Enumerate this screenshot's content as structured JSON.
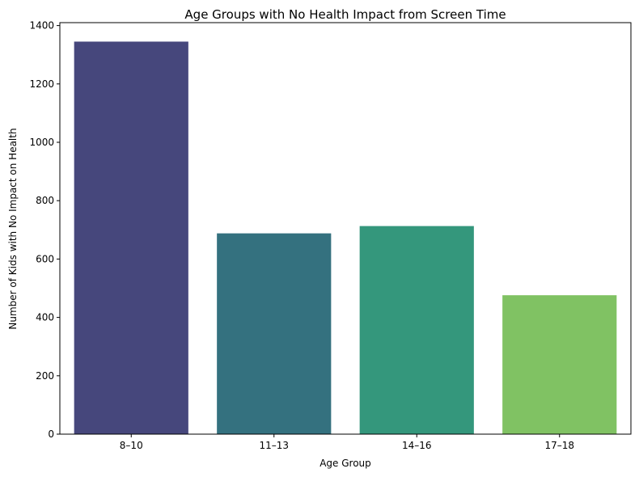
{
  "chart_data": {
    "type": "bar",
    "title": "Age Groups with No Health Impact from Screen Time",
    "xlabel": "Age Group",
    "ylabel": "Number of Kids with No Impact on Health",
    "categories": [
      "8–10",
      "11–13",
      "14–16",
      "17–18"
    ],
    "values": [
      1345,
      688,
      713,
      476
    ],
    "colors": [
      "#46477c",
      "#34717f",
      "#34977c",
      "#80c263"
    ],
    "ylim": [
      0,
      1410
    ],
    "yticks": [
      0,
      200,
      400,
      600,
      800,
      1000,
      1200,
      1400
    ],
    "grid": false,
    "legend": "none"
  }
}
